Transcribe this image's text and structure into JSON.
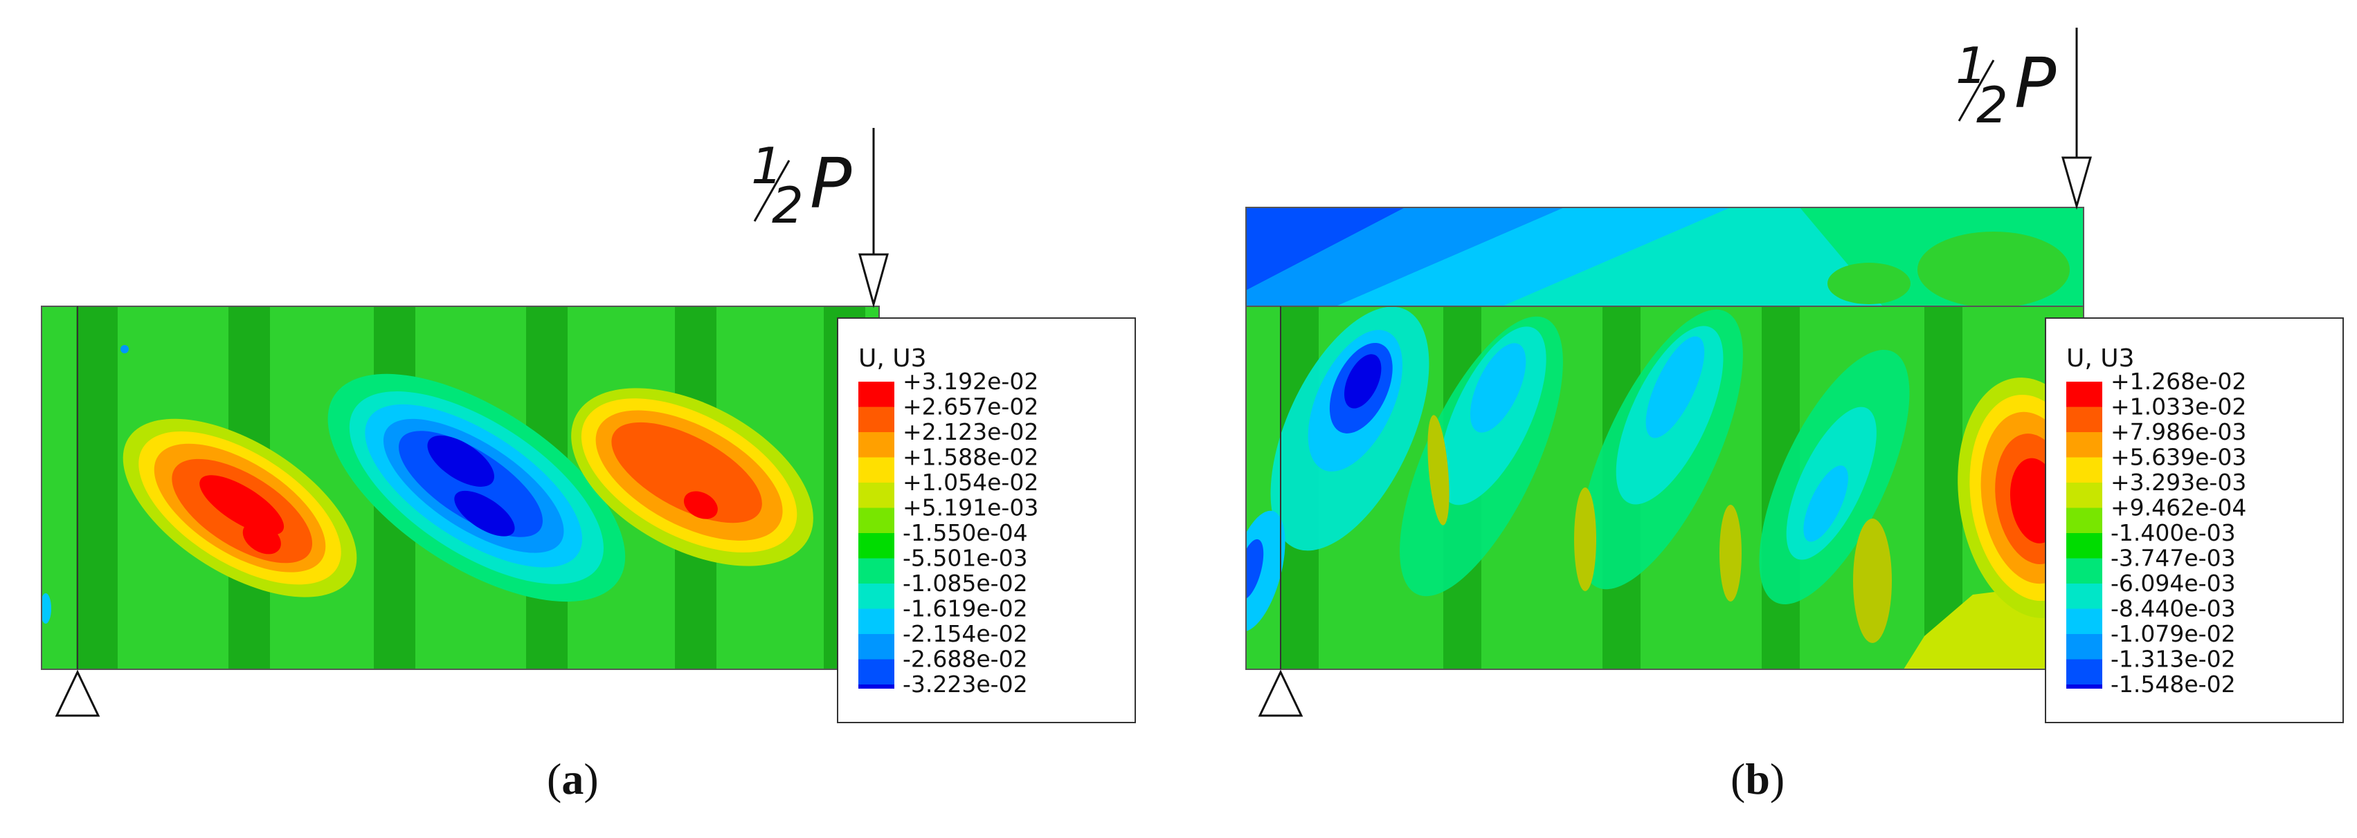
{
  "figures": [
    {
      "id": "a",
      "caption_open": "(",
      "caption_letter": "a",
      "caption_close": ")",
      "load_num": "1",
      "load_den": "2",
      "load_var": "P",
      "legend_title": "U, U3",
      "legend_values": [
        "+3.192e-02",
        "+2.657e-02",
        "+2.123e-02",
        "+1.588e-02",
        "+1.054e-02",
        "+5.191e-03",
        "-1.550e-04",
        "-5.501e-03",
        "-1.085e-02",
        "-1.619e-02",
        "-2.154e-02",
        "-2.688e-02",
        "-3.223e-02"
      ]
    },
    {
      "id": "b",
      "caption_open": "(",
      "caption_letter": "b",
      "caption_close": ")",
      "load_num": "1",
      "load_den": "2",
      "load_var": "P",
      "legend_title": "U, U3",
      "legend_values": [
        "+1.268e-02",
        "+1.033e-02",
        "+7.986e-03",
        "+5.639e-03",
        "+3.293e-03",
        "+9.462e-04",
        "-1.400e-03",
        "-3.747e-03",
        "-6.094e-03",
        "-8.440e-03",
        "-1.079e-02",
        "-1.313e-02",
        "-1.548e-02"
      ]
    }
  ],
  "colors": {
    "scale": [
      "#ff0000",
      "#ff5a00",
      "#ffa000",
      "#ffe000",
      "#c8e600",
      "#78e600",
      "#00dc00",
      "#00e678",
      "#00e6c8",
      "#00c8ff",
      "#0096ff",
      "#0050ff",
      "#0000e6"
    ],
    "green_base": "#22cc22",
    "green_dark": "#1aa51a"
  }
}
